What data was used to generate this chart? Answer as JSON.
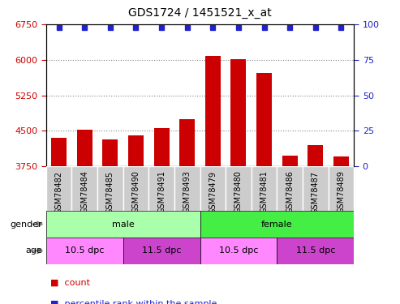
{
  "title": "GDS1724 / 1451521_x_at",
  "samples": [
    "GSM78482",
    "GSM78484",
    "GSM78485",
    "GSM78490",
    "GSM78491",
    "GSM78493",
    "GSM78479",
    "GSM78480",
    "GSM78481",
    "GSM78486",
    "GSM78487",
    "GSM78489"
  ],
  "counts": [
    4350,
    4520,
    4320,
    4400,
    4550,
    4750,
    6080,
    6020,
    5720,
    3980,
    4200,
    3960
  ],
  "ylim_left": [
    3750,
    6750
  ],
  "ylim_right": [
    0,
    100
  ],
  "yticks_left": [
    3750,
    4500,
    5250,
    6000,
    6750
  ],
  "yticks_right": [
    0,
    25,
    50,
    75,
    100
  ],
  "bar_color": "#cc0000",
  "dot_color": "#2222cc",
  "gender_labels": [
    "male",
    "female"
  ],
  "gender_split": 6,
  "gender_color_light": "#aaffaa",
  "gender_color_dark": "#44ee44",
  "age_labels": [
    "10.5 dpc",
    "11.5 dpc",
    "10.5 dpc",
    "11.5 dpc"
  ],
  "age_splits": [
    0,
    3,
    6,
    9,
    12
  ],
  "age_color_light": "#ff88ff",
  "age_color_dark": "#cc44cc",
  "xlabel_gender": "gender",
  "xlabel_age": "age",
  "sample_bg_color": "#cccccc",
  "label_color_left": "#cc0000",
  "label_color_right": "#2222cc",
  "arrow_color": "#888888",
  "grid_linestyle": "dotted",
  "grid_color": "#888888"
}
